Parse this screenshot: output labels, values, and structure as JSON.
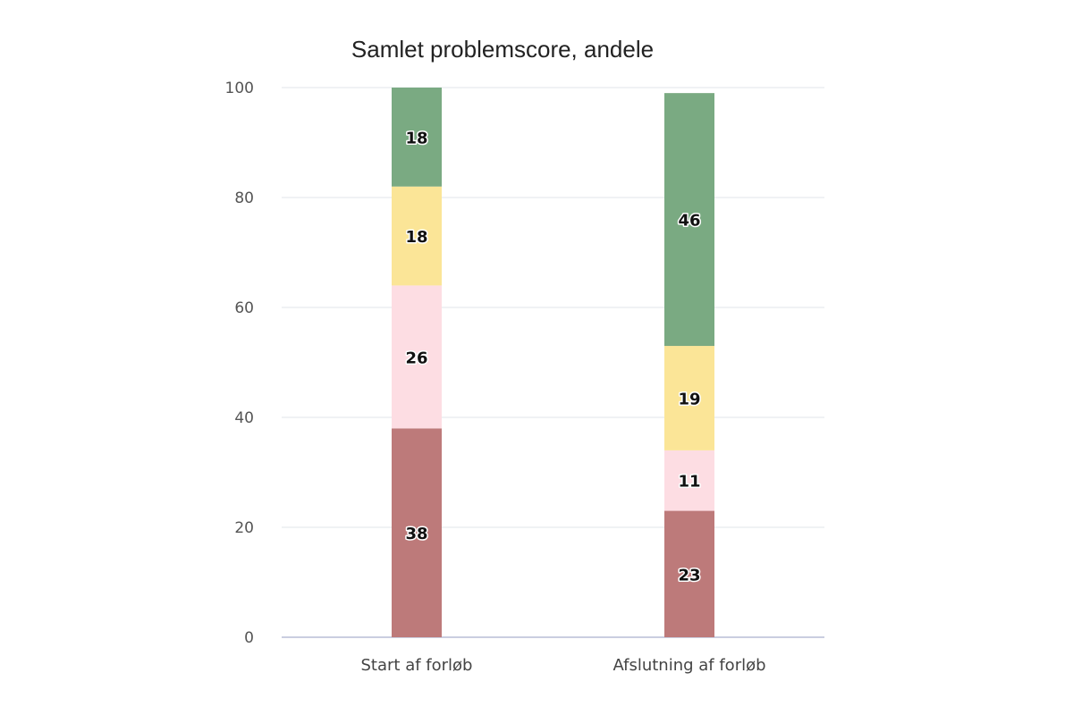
{
  "chart_data": {
    "type": "bar",
    "stacked": true,
    "title": "Samlet problemscore, andele",
    "xlabel": "",
    "ylabel": "",
    "ylim": [
      0,
      100
    ],
    "yticks": [
      0,
      20,
      40,
      60,
      80,
      100
    ],
    "grid": true,
    "legend": "none",
    "categories": [
      "Start af forløb",
      "Afslutning af forløb"
    ],
    "series": [
      {
        "color": "#bd7a7a",
        "values": [
          38,
          23
        ]
      },
      {
        "color": "#fddde3",
        "values": [
          26,
          11
        ]
      },
      {
        "color": "#fbe597",
        "values": [
          18,
          19
        ]
      },
      {
        "color": "#7aaa82",
        "values": [
          18,
          46
        ]
      }
    ]
  }
}
